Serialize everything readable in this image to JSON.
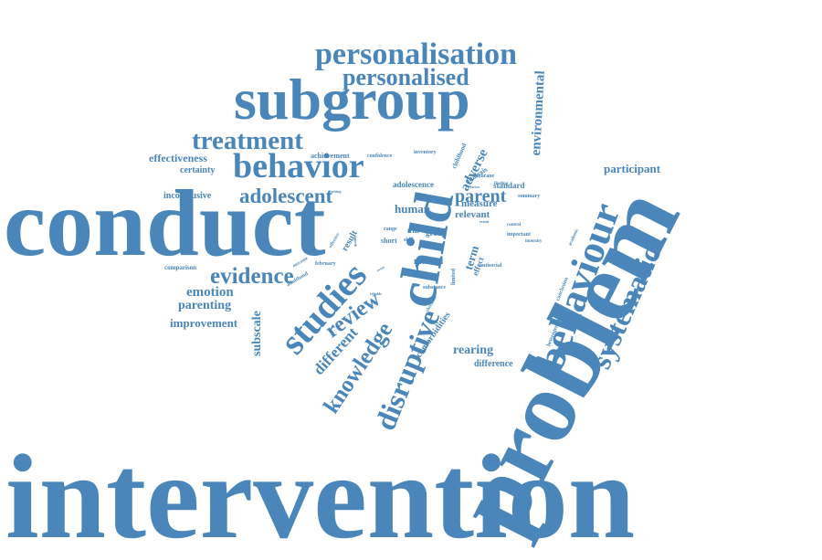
{
  "colors": {
    "word": "#4a86b9",
    "background": "#ffffff"
  },
  "words": [
    "intervention",
    "conduct",
    "problem",
    "subgroup",
    "child",
    "behaviour",
    "behavior",
    "personalisation",
    "personalised",
    "treatment",
    "systematic",
    "studies",
    "disruptive",
    "adolescent",
    "evidence",
    "review",
    "knowledge",
    "parent",
    "environmental",
    "adverse",
    "different",
    "emotion",
    "parenting",
    "improvement",
    "effectiveness",
    "certainty",
    "inconclusive",
    "comparison",
    "participant",
    "subscale",
    "human",
    "rearing",
    "difference",
    "comorbidities",
    "term",
    "result",
    "method",
    "standard",
    "relevant",
    "measure",
    "adolescence",
    "achievement",
    "confidence",
    "inventory",
    "childhood",
    "analysis",
    "cochrane",
    "summary",
    "finding",
    "group",
    "trial",
    "range",
    "short",
    "skill",
    "important",
    "intensity",
    "antisocial",
    "limited",
    "effect",
    "substance",
    "checklist",
    "conclusion",
    "heterogeneity",
    "academic",
    "control",
    "february",
    "adulthood",
    "outcome",
    "effective",
    "setting",
    "extent",
    "factor",
    "event",
    "reliable",
    "quality"
  ]
}
